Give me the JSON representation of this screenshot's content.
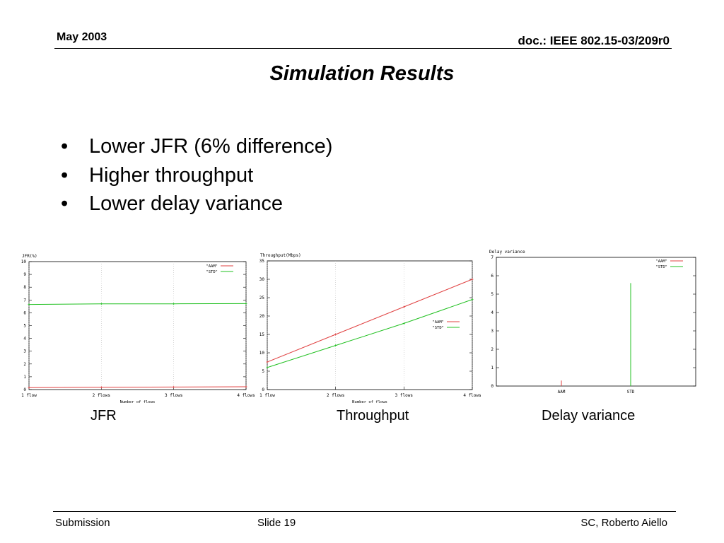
{
  "header": {
    "date": "May 2003",
    "doc": "doc.: IEEE 802.15-03/209r0"
  },
  "title": "Simulation Results",
  "bullets": [
    "Lower JFR (6% difference)",
    "Higher throughput",
    "Lower delay variance"
  ],
  "captions": {
    "jfr": "JFR",
    "throughput": "Throughput",
    "delay": "Delay variance"
  },
  "footer": {
    "left": "Submission",
    "center": "Slide 19",
    "right": "SC, Roberto Aiello"
  },
  "colors": {
    "aam": "#e04040",
    "std": "#20c020",
    "grid": "#b0b0b0"
  },
  "chart_data": [
    {
      "type": "line",
      "title": "JFR(%)",
      "xlabel": "Number of flows",
      "ylabel": "JFR(%)",
      "categories": [
        "1 flow",
        "2 flows",
        "3 flows",
        "4 flows"
      ],
      "ylim": [
        0,
        10
      ],
      "yticks": [
        0,
        1,
        2,
        3,
        4,
        5,
        6,
        7,
        8,
        9,
        10
      ],
      "grid": true,
      "legend": "top-right",
      "series": [
        {
          "name": "\"AAM\"",
          "values": [
            0.15,
            0.18,
            0.2,
            0.22
          ]
        },
        {
          "name": "\"STD\"",
          "values": [
            6.65,
            6.7,
            6.7,
            6.72
          ]
        }
      ]
    },
    {
      "type": "line",
      "title": "Throughput(Mbps)",
      "xlabel": "Number of flows",
      "ylabel": "Throughput(Mbps)",
      "categories": [
        "1 flow",
        "2 flows",
        "3 flows",
        "4 flows"
      ],
      "ylim": [
        0,
        35
      ],
      "yticks": [
        0,
        5,
        10,
        15,
        20,
        25,
        30,
        35
      ],
      "grid": true,
      "legend": "center-right",
      "series": [
        {
          "name": "\"AAM\"",
          "values": [
            7.5,
            15,
            22.5,
            30
          ]
        },
        {
          "name": "\"STD\"",
          "values": [
            6,
            12,
            18,
            24.5
          ]
        }
      ]
    },
    {
      "type": "line",
      "title": "Delay variance",
      "xlabel": "",
      "ylabel": "Delay variance",
      "categories": [
        "AAM",
        "STD"
      ],
      "ylim": [
        0,
        7
      ],
      "yticks": [
        0,
        1,
        2,
        3,
        4,
        5,
        6,
        7
      ],
      "grid": true,
      "legend": "top-right",
      "series": [
        {
          "name": "\"AAM\"",
          "values": [
            0.3,
            0
          ]
        },
        {
          "name": "\"STD\"",
          "values": [
            0,
            5.6
          ]
        }
      ]
    }
  ]
}
